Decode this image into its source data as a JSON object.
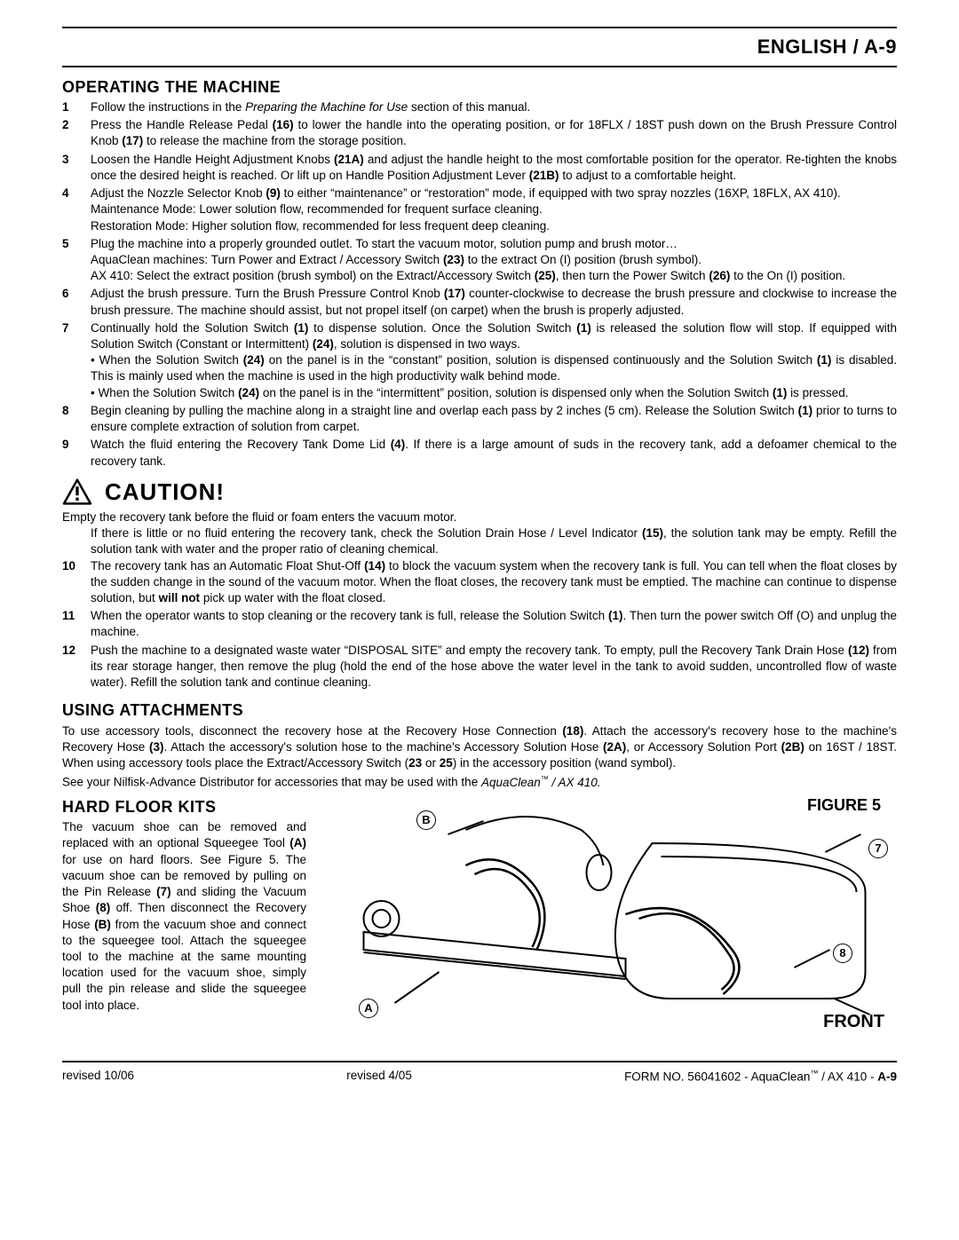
{
  "header": {
    "title": "ENGLISH / A-9"
  },
  "section1": {
    "title": "OPERATING THE MACHINE",
    "items": [
      {
        "n": "1",
        "html": "Follow the instructions in the <span class='i'>Preparing the Machine for Use</span> section of this manual."
      },
      {
        "n": "2",
        "html": "Press the Handle Release Pedal <span class='b'>(16)</span> to lower the handle into the operating position, or for 18FLX / 18ST push down on the Brush Pressure Control Knob <span class='b'>(17)</span> to release the machine from the storage position."
      },
      {
        "n": "3",
        "html": "Loosen the Handle Height Adjustment Knobs <span class='b'>(21A)</span> and adjust the handle height to the most comfortable position for the operator.  Re-tighten the knobs once the desired height is reached.  Or lift up on Handle Position Adjustment Lever <span class='b'>(21B)</span> to adjust to a comfortable height."
      },
      {
        "n": "4",
        "html": "Adjust the Nozzle Selector Knob <span class='b'>(9)</span> to either “maintenance” or “restoration” mode, if equipped with two spray nozzles (16XP, 18FLX, AX 410).<span class='sub'>Maintenance Mode: Lower solution flow, recommended for frequent surface cleaning.</span><span class='sub'>Restoration Mode: Higher solution flow, recommended for less frequent deep cleaning.</span>"
      },
      {
        "n": "5",
        "html": "Plug the machine into a properly grounded outlet.  To start the vacuum motor, solution pump and brush motor…<span class='sub'>AquaClean machines: Turn Power and Extract / Accessory Switch <span class='b'>(23)</span> to the extract On (I) position (brush symbol).</span><span class='sub'>AX 410: Select the extract position (brush symbol) on the Extract/Accessory Switch <span class='b'>(25)</span>, then turn the Power Switch <span class='b'>(26)</span> to the On (I) position.</span>"
      },
      {
        "n": "6",
        "html": "Adjust the brush pressure.  Turn the Brush Pressure Control Knob <span class='b'>(17)</span> counter-clockwise to decrease the brush pressure and clockwise to increase the brush pressure.  The machine should assist, but not propel itself (on carpet) when the brush is properly adjusted."
      },
      {
        "n": "7",
        "html": "Continually hold the Solution Switch <span class='b'>(1)</span> to dispense solution.  Once the Solution Switch <span class='b'>(1)</span> is released the solution flow will stop.  If equipped with Solution Switch (Constant or Intermittent) <span class='b'>(24)</span>, solution is dispensed in two ways.<span class='sub'>• When the Solution Switch <span class='b'>(24)</span> on the panel is in the “constant” position, solution is dispensed continuously and the Solution Switch <span class='b'>(1)</span> is disabled.  This is mainly used when the machine is used in the high productivity walk behind mode.</span><span class='sub'>• When the Solution Switch <span class='b'>(24)</span> on the panel is in the “intermittent” position, solution is dispensed only when the Solution Switch <span class='b'>(1)</span> is pressed.</span>"
      },
      {
        "n": "8",
        "html": "Begin cleaning by pulling the machine along in a straight line and overlap each pass by 2 inches (5 cm).  Release the Solution Switch <span class='b'>(1)</span> prior to turns to ensure complete extraction of solution from carpet."
      },
      {
        "n": "9",
        "html": "Watch the fluid entering the Recovery Tank Dome Lid <span class='b'>(4)</span>.  If there is a large amount of suds in the recovery tank, add a defoamer chemical to the recovery tank."
      }
    ]
  },
  "caution": {
    "word": "CAUTION!",
    "line1": "Empty the recovery tank before the fluid or foam enters the vacuum motor.",
    "line2_html": "If there is little or no fluid entering the recovery tank, check the Solution Drain Hose / Level Indicator <span class='b'>(15)</span>, the solution tank may be empty.  Refill the solution tank with water and the proper ratio of cleaning chemical.",
    "items": [
      {
        "n": "10",
        "html": "The recovery tank has an Automatic Float Shut-Off <span class='b'>(14)</span> to block the vacuum system when the recovery tank is full.  You can tell when the float closes by the sudden change in the sound of the vacuum motor.  When the float closes, the recovery tank must be emptied.  The machine can continue to dispense solution, but <span class='b'>will not</span> pick up water with the float closed."
      },
      {
        "n": "11",
        "html": "When the operator wants to stop cleaning or the recovery tank is full, release the Solution Switch <span class='b'>(1)</span>.  Then turn the power switch Off (O) and unplug the machine."
      },
      {
        "n": "12",
        "html": "Push the machine to a designated waste water “DISPOSAL SITE” and empty the recovery tank.  To empty, pull the Recovery Tank Drain Hose <span class='b'>(12)</span> from its rear storage hanger, then remove the plug (hold the end of the hose above the water level in the tank to avoid sudden, uncontrolled flow of waste water).  Refill the solution tank and continue cleaning."
      }
    ]
  },
  "section2": {
    "title": "USING ATTACHMENTS",
    "p1_html": "To use accessory tools, disconnect the recovery hose at the Recovery Hose Connection <span class='b'>(18)</span>.  Attach the accessory's recovery hose to the machine's Recovery Hose <span class='b'>(3)</span>.  Attach the accessory's solution hose to the machine's Accessory Solution Hose <span class='b'>(2A)</span>, or Accessory Solution Port <span class='b'>(2B)</span> on 16ST / 18ST.  When using accessory tools place the Extract/Accessory Switch (<span class='b'>23</span> or <span class='b'>25</span>) in the accessory position (wand symbol).",
    "p2_html": "See your Nilfisk-Advance Distributor for accessories that may be used with the <span class='i'>AquaClean<span class='tm'>™</span> / AX 410.</span>"
  },
  "section3": {
    "title": "HARD FLOOR KITS",
    "body_html": "The vacuum shoe can be removed and replaced with an optional Squeegee Tool <span class='b'>(A)</span> for use on hard floors.  See Figure 5.  The vacuum shoe can be removed by pulling on the Pin Release <span class='b'>(7)</span> and sliding the Vacuum Shoe <span class='b'>(8)</span> off.  Then disconnect the Recovery Hose <span class='b'>(B)</span> from the vacuum shoe and connect to the squeegee tool.  Attach the squeegee tool to the machine at the same mounting location used for the vacuum shoe, simply pull the pin release and slide the squeegee tool into place."
  },
  "figure": {
    "label": "FIGURE 5",
    "front": "FRONT",
    "callouts": {
      "A": "A",
      "B": "B",
      "7": "7",
      "8": "8"
    }
  },
  "footer": {
    "left": "revised 10/06",
    "mid": "revised 4/05",
    "right_html": "FORM NO. 56041602 - AquaClean<span class='tm'>™</span> / AX 410 - <span class='b'>A-9</span>"
  }
}
